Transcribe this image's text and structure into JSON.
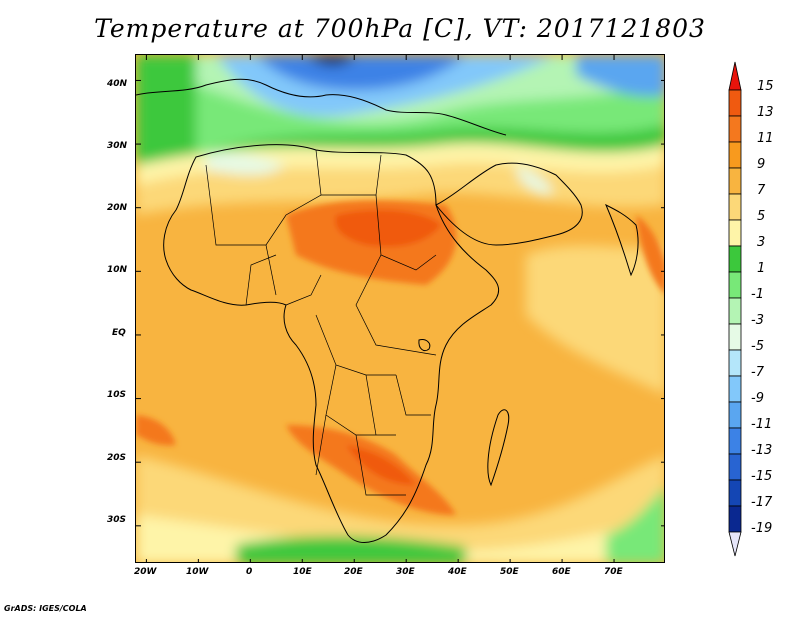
{
  "title": "Temperature at 700hPa [C], VT: 2017121803",
  "credit": "GrADS: IGES/COLA",
  "map": {
    "lat_labels": [
      "40N",
      "30N",
      "20N",
      "10N",
      "EQ",
      "10S",
      "20S",
      "30S"
    ],
    "lat_values": [
      40,
      30,
      20,
      10,
      0,
      -10,
      -20,
      -30
    ],
    "lon_labels": [
      "20W",
      "10W",
      "0",
      "10E",
      "20E",
      "30E",
      "40E",
      "50E",
      "60E",
      "70E"
    ],
    "lon_values": [
      -20,
      -10,
      0,
      10,
      20,
      30,
      40,
      50,
      60,
      70
    ],
    "lon_range": [
      -22,
      80
    ],
    "lat_range": [
      -36,
      44
    ]
  },
  "colorbar": {
    "labels": [
      "15",
      "13",
      "11",
      "9",
      "7",
      "5",
      "3",
      "1",
      "-1",
      "-3",
      "-5",
      "-7",
      "-9",
      "-11",
      "-13",
      "-15",
      "-17",
      "-19"
    ],
    "colors": [
      "#e8140c",
      "#f05a10",
      "#f4781e",
      "#f89a1e",
      "#f8b440",
      "#fcd878",
      "#fef4a8",
      "#3cc83c",
      "#78e878",
      "#b4f4b4",
      "#e6fae6",
      "#b4e6fa",
      "#82c8fa",
      "#5aa6f0",
      "#3c82e6",
      "#2864d2",
      "#1446b4",
      "#0a2890",
      "#06146a"
    ],
    "top_arrow_color": "#e8140c",
    "bottom_arrow_color": "#e6e6fa"
  }
}
